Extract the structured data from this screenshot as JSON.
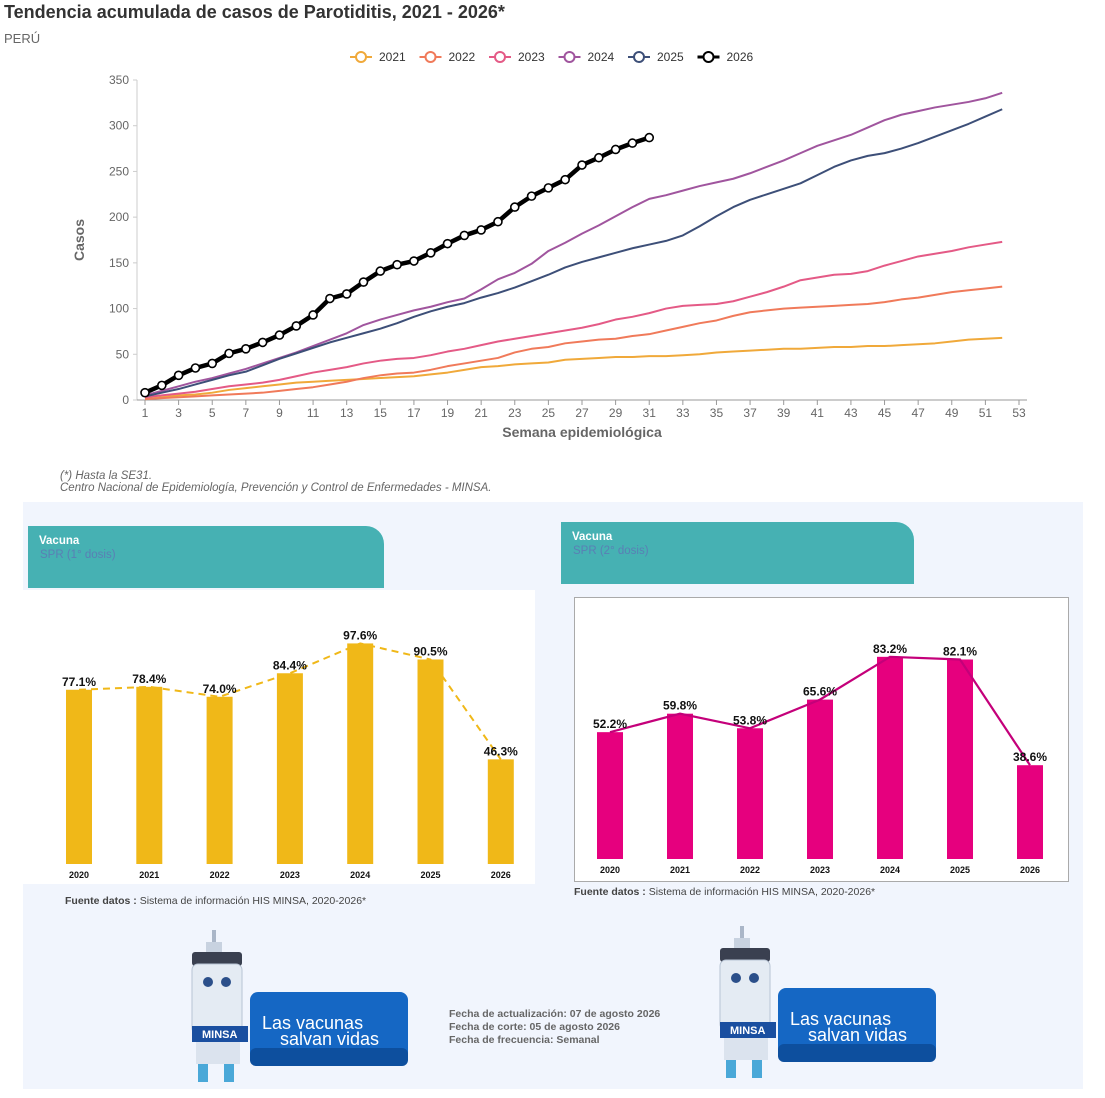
{
  "title": "Tendencia acumulada de casos de Parotiditis, 2021 - 2026*",
  "subtitle": "PERÚ",
  "notes": [
    "(*) Hasta la SE31.",
    "Centro Nacional de Epidemiología, Prevención y Control de Enfermedades - MINSA."
  ],
  "colors": {
    "teal": "#46b1b3",
    "yellow": "#f0b818",
    "magenta": "#e6007e",
    "panel": "#f1f5fd"
  },
  "chart_data": [
    {
      "type": "line",
      "xlabel": "Semana epidemiológica",
      "ylabel": "Casos",
      "xlim": [
        1,
        53
      ],
      "ylim": [
        0,
        350
      ],
      "x_ticks": [
        1,
        3,
        5,
        7,
        9,
        11,
        13,
        15,
        17,
        19,
        21,
        23,
        25,
        27,
        29,
        31,
        33,
        35,
        37,
        39,
        41,
        43,
        45,
        47,
        49,
        51,
        53
      ],
      "y_ticks": [
        0,
        50,
        100,
        150,
        200,
        250,
        300,
        350
      ],
      "legend_position": "top-center",
      "series": [
        {
          "name": "2021",
          "color": "#f0a93a",
          "x_start": 1,
          "values": [
            1,
            3,
            5,
            6,
            8,
            11,
            13,
            15,
            17,
            19,
            20,
            21,
            22,
            23,
            24,
            25,
            26,
            28,
            30,
            33,
            36,
            37,
            39,
            40,
            41,
            44,
            45,
            46,
            47,
            47,
            48,
            48,
            49,
            50,
            52,
            53,
            54,
            55,
            56,
            56,
            57,
            58,
            58,
            59,
            59,
            60,
            61,
            62,
            64,
            66,
            67,
            68
          ]
        },
        {
          "name": "2022",
          "color": "#f07a5a",
          "x_start": 1,
          "values": [
            1,
            2,
            3,
            4,
            5,
            6,
            7,
            8,
            10,
            12,
            14,
            17,
            20,
            24,
            27,
            29,
            30,
            33,
            37,
            40,
            43,
            46,
            52,
            56,
            58,
            62,
            64,
            66,
            67,
            70,
            72,
            76,
            80,
            84,
            87,
            92,
            96,
            98,
            100,
            101,
            102,
            103,
            104,
            105,
            107,
            110,
            112,
            115,
            118,
            120,
            122,
            124
          ]
        },
        {
          "name": "2023",
          "color": "#e45a86",
          "x_start": 1,
          "values": [
            3,
            5,
            7,
            9,
            12,
            15,
            17,
            19,
            22,
            26,
            30,
            33,
            36,
            40,
            43,
            45,
            46,
            49,
            53,
            56,
            60,
            64,
            67,
            70,
            73,
            76,
            79,
            83,
            88,
            91,
            95,
            100,
            103,
            104,
            105,
            108,
            113,
            118,
            124,
            131,
            134,
            137,
            138,
            141,
            147,
            152,
            157,
            160,
            163,
            167,
            170,
            173
          ]
        },
        {
          "name": "2024",
          "color": "#a0559e",
          "x_start": 1,
          "values": [
            5,
            10,
            15,
            20,
            24,
            29,
            34,
            40,
            46,
            52,
            59,
            66,
            73,
            82,
            88,
            93,
            98,
            102,
            107,
            111,
            121,
            132,
            139,
            149,
            163,
            172,
            182,
            191,
            201,
            211,
            220,
            224,
            229,
            234,
            238,
            242,
            248,
            255,
            262,
            270,
            278,
            284,
            290,
            298,
            306,
            312,
            316,
            320,
            323,
            326,
            330,
            336
          ]
        },
        {
          "name": "2025",
          "color": "#3d4f78",
          "x_start": 1,
          "values": [
            4,
            8,
            12,
            17,
            22,
            27,
            31,
            38,
            45,
            51,
            57,
            63,
            68,
            73,
            78,
            84,
            91,
            97,
            102,
            106,
            112,
            117,
            123,
            130,
            137,
            145,
            151,
            156,
            161,
            166,
            170,
            174,
            180,
            190,
            201,
            211,
            219,
            225,
            231,
            237,
            246,
            255,
            262,
            267,
            270,
            275,
            281,
            288,
            295,
            302,
            310,
            318
          ]
        },
        {
          "name": "2026",
          "color": "#000000",
          "x_start": 1,
          "values": [
            8,
            16,
            27,
            35,
            40,
            51,
            56,
            63,
            71,
            81,
            93,
            111,
            116,
            129,
            141,
            148,
            152,
            161,
            171,
            180,
            186,
            195,
            211,
            223,
            232,
            241,
            257,
            265,
            274,
            281,
            287
          ]
        }
      ]
    },
    {
      "type": "bar",
      "header_title": "Vacuna",
      "header_sub": "SPR (1° dosis)",
      "categories": [
        "2020",
        "2021",
        "2022",
        "2023",
        "2024",
        "2025",
        "2026"
      ],
      "values": [
        77.1,
        78.4,
        74.0,
        84.4,
        97.6,
        90.5,
        46.3
      ],
      "value_labels": [
        "77.1%",
        "78.4%",
        "74.0%",
        "84.4%",
        "97.6%",
        "90.5%",
        "46.3%"
      ],
      "color": "#f0b818",
      "line_color": "#f0b818",
      "line_style": "dashed",
      "fuente_label": "Fuente datos :",
      "fuente_text": "Sistema de información HIS MINSA, 2020-2026*"
    },
    {
      "type": "bar",
      "header_title": "Vacuna",
      "header_sub": "SPR (2° dosis)",
      "categories": [
        "2020",
        "2021",
        "2022",
        "2023",
        "2024",
        "2025",
        "2026"
      ],
      "values": [
        52.2,
        59.8,
        53.8,
        65.6,
        83.2,
        82.1,
        38.6
      ],
      "value_labels": [
        "52.2%",
        "59.8%",
        "53.8%",
        "65.6%",
        "83.2%",
        "82.1%",
        "38.6%"
      ],
      "color": "#e6007e",
      "line_color": "#c4007a",
      "line_style": "solid",
      "fuente_label": "Fuente datos :",
      "fuente_text": "Sistema de información HIS MINSA, 2020-2026*"
    }
  ],
  "fechas": [
    "Fecha de actualización: 07 de agosto 2026",
    "Fecha de corte: 05 de agosto 2026",
    "Fecha de frecuencia: Semanal"
  ],
  "banner": {
    "line1": "Las vacunas",
    "line2": "salvan vidas",
    "brand": "MINSA"
  }
}
